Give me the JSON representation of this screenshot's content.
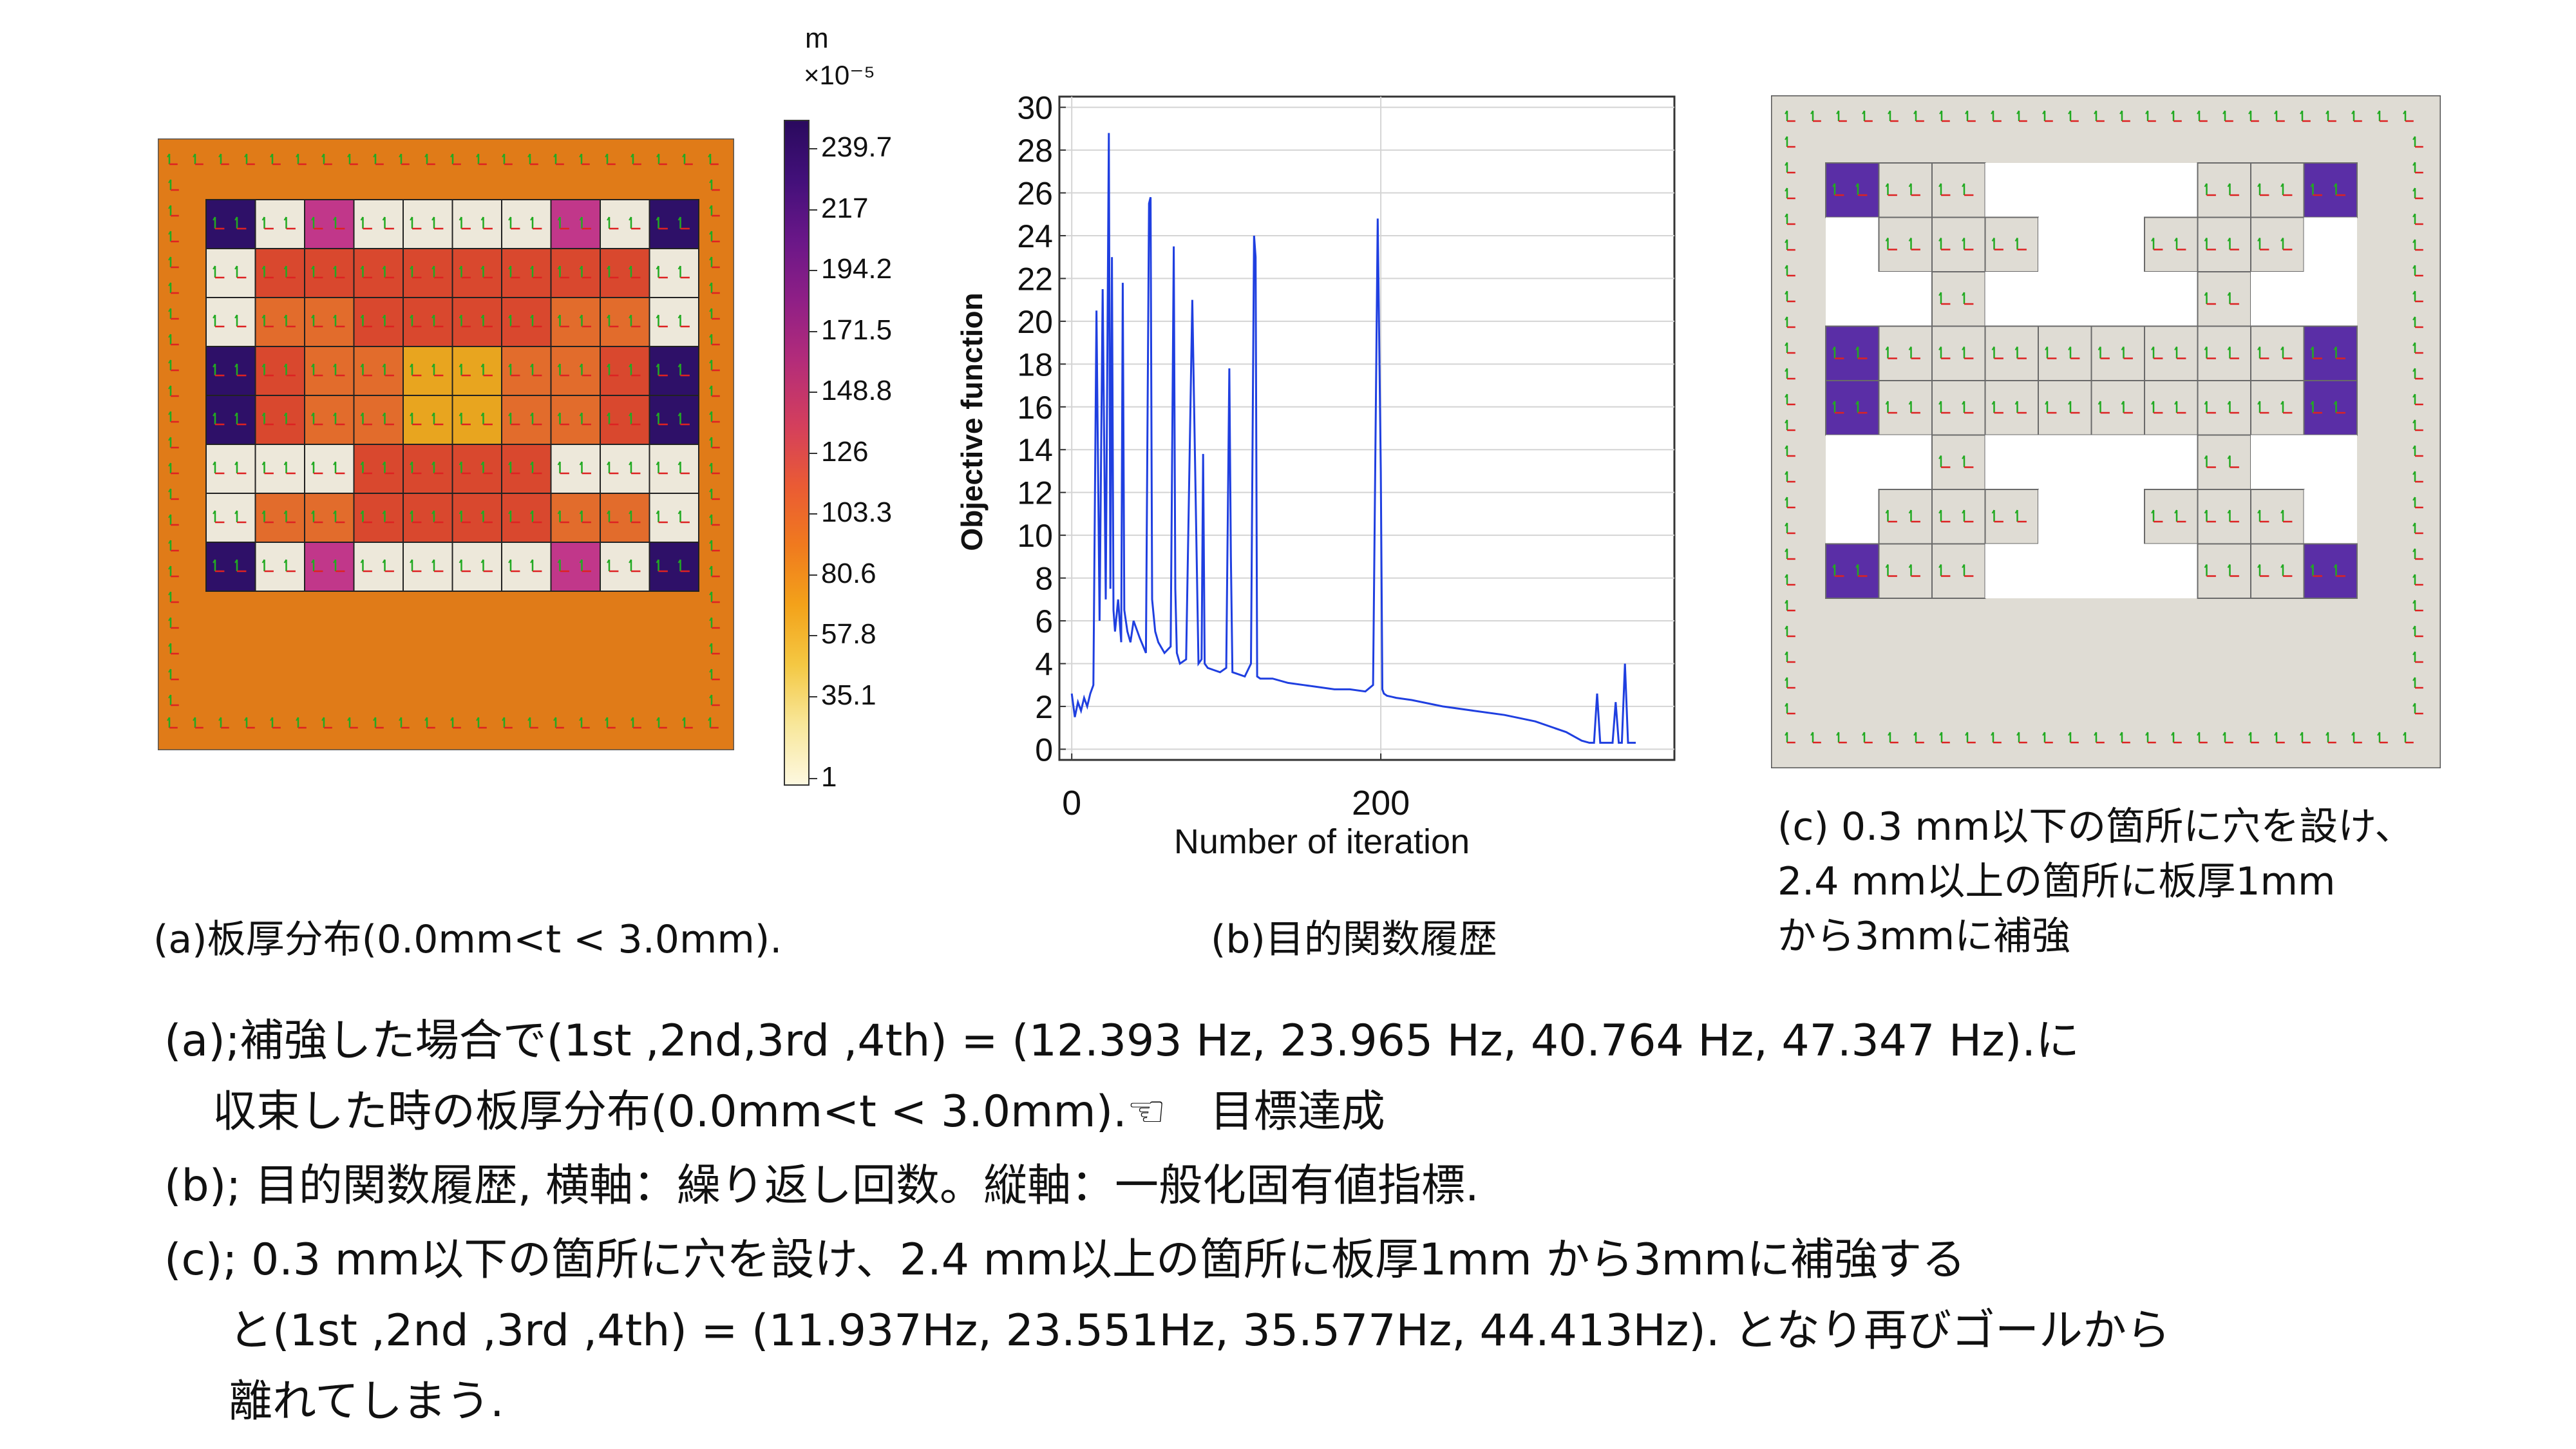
{
  "panel_a": {
    "colorbar_unit": "m",
    "colorbar_scale": "×10⁻⁵",
    "colorbar_ticks": [
      "239.7",
      "217",
      "194.2",
      "171.5",
      "148.8",
      "126",
      "103.3",
      "80.6",
      "57.8",
      "35.1",
      "1"
    ],
    "caption": "(a)板厚分布(0.0mm<t < 3.0mm).",
    "colors": {
      "frame": "#e07b18",
      "light": "#ede8da",
      "magenta": "#c1378a",
      "purple": "#2e1068",
      "red": "#d9482e",
      "orange": "#e26c2c",
      "amber": "#e8a51f"
    }
  },
  "panel_b": {
    "caption": "(b)目的関数履歴",
    "chart_data": {
      "type": "line",
      "xlabel": "Number of iteration",
      "ylabel": "Objective function",
      "xlim": [
        -8,
        390
      ],
      "ylim": [
        -0.5,
        30.5
      ],
      "xticks": [
        0,
        200
      ],
      "yticks": [
        0,
        2,
        4,
        6,
        8,
        10,
        12,
        14,
        16,
        18,
        20,
        22,
        24,
        26,
        28,
        30
      ],
      "grid": true,
      "line_color": "#1f3fe0",
      "series": [
        {
          "x": [
            0,
            2,
            4,
            6,
            8,
            10,
            12,
            14,
            16,
            18,
            20,
            22,
            24,
            25,
            26,
            27,
            28,
            30,
            32,
            33,
            34,
            36,
            38,
            40,
            44,
            48,
            50,
            51,
            52,
            54,
            56,
            60,
            64,
            66,
            67,
            68,
            70,
            74,
            78,
            82,
            84,
            85,
            86,
            88,
            92,
            96,
            100,
            102,
            103,
            104,
            108,
            112,
            116,
            118,
            119,
            120,
            122,
            130,
            140,
            150,
            160,
            170,
            180,
            190,
            195,
            198,
            200,
            201,
            202,
            204,
            210,
            220,
            240,
            260,
            280,
            300,
            320,
            330,
            335,
            338,
            340,
            342,
            345,
            350,
            352,
            354,
            356,
            358,
            360,
            362,
            365
          ],
          "y": [
            2.6,
            1.5,
            2.2,
            1.8,
            2.4,
            2.0,
            2.6,
            3.0,
            20.5,
            6.0,
            21.5,
            7.0,
            28.8,
            7.5,
            23.0,
            6.5,
            5.5,
            7.0,
            5.0,
            21.8,
            6.5,
            5.5,
            5.0,
            6.0,
            5.2,
            4.5,
            25.5,
            25.8,
            7.0,
            5.5,
            5.0,
            4.5,
            4.8,
            23.5,
            7.5,
            4.5,
            4.0,
            4.2,
            21.0,
            4.0,
            4.2,
            13.8,
            4.0,
            3.8,
            3.7,
            3.6,
            3.8,
            17.8,
            9.0,
            3.6,
            3.5,
            3.4,
            4.0,
            24.0,
            23.0,
            3.4,
            3.3,
            3.3,
            3.1,
            3.0,
            2.9,
            2.8,
            2.8,
            2.7,
            3.0,
            24.8,
            13.0,
            2.8,
            2.6,
            2.5,
            2.4,
            2.3,
            2.0,
            1.8,
            1.6,
            1.3,
            0.8,
            0.4,
            0.3,
            0.3,
            2.6,
            0.3,
            0.3,
            0.3,
            2.2,
            0.3,
            0.3,
            4.0,
            0.3,
            0.3,
            0.3
          ]
        }
      ]
    }
  },
  "panel_c": {
    "caption_lines": [
      "(c) 0.3 mm以下の箇所に穴を設け、",
      "2.4 mm以上の箇所に板厚1mm",
      "から3mmに補強"
    ],
    "colors": {
      "frame": "#dfdcd4",
      "purple": "#5a2ea6",
      "white": "#ffffff",
      "border": "#7a7a7a"
    }
  },
  "body_text": [
    "(a);補強した場合で(1st ,2nd,3rd ,4th) = (12.393 Hz, 23.965 Hz, 40.764 Hz, 47.347 Hz).に",
    "収束した時の板厚分布(0.0mm<t < 3.0mm).☜　目標達成",
    "(b); 目的関数履歴, 横軸：繰り返し回数。縦軸：一般化固有値指標.",
    "(c); 0.3 mm以下の箇所に穴を設け、2.4 mm以上の箇所に板厚1mm から3mmに補強する",
    "と(1st ,2nd ,3rd ,4th) = (11.937Hz, 23.551Hz, 35.577Hz, 44.413Hz). となり再びゴールから",
    "離れてしまう."
  ]
}
